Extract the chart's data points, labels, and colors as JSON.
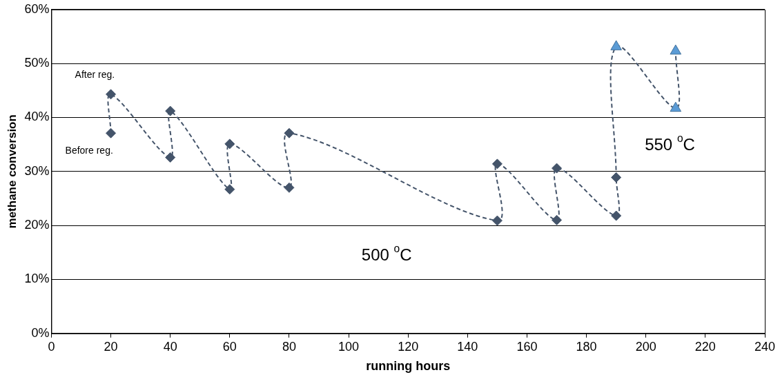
{
  "chart_data": {
    "type": "scatter",
    "xlabel": "running hours",
    "ylabel": "methane conversion",
    "xlim": [
      0,
      240
    ],
    "xticks": [
      0,
      20,
      40,
      60,
      80,
      100,
      120,
      140,
      160,
      180,
      200,
      220,
      240
    ],
    "ylim": [
      0,
      60
    ],
    "yticks": [
      {
        "value": 0,
        "label": "0%"
      },
      {
        "value": 10,
        "label": "10%"
      },
      {
        "value": 20,
        "label": "20%"
      },
      {
        "value": 30,
        "label": "30%"
      },
      {
        "value": 40,
        "label": "40%"
      },
      {
        "value": 50,
        "label": "50%"
      },
      {
        "value": 60,
        "label": "60%"
      }
    ],
    "grid": "y",
    "legend": false,
    "series": [
      {
        "type": "line",
        "marker": "none",
        "line_style": "dashed",
        "color": "#44546a",
        "x": [
          20,
          20,
          40,
          40,
          60,
          60,
          80,
          80,
          150,
          150,
          170,
          170,
          190,
          190,
          190,
          210,
          210
        ],
        "values": [
          37.1,
          44.3,
          32.6,
          41.2,
          26.7,
          35.1,
          27.0,
          37.1,
          20.9,
          31.4,
          21.0,
          30.6,
          21.8,
          28.9,
          53.1,
          41.7,
          52.3
        ]
      },
      {
        "type": "scatter",
        "marker": "diamond",
        "color": "#44546a",
        "x": [
          20,
          20,
          40,
          40,
          60,
          60,
          80,
          80,
          150,
          150,
          170,
          170,
          190,
          190
        ],
        "values": [
          37.1,
          44.3,
          32.6,
          41.2,
          26.7,
          35.1,
          27.0,
          37.1,
          20.9,
          31.4,
          21.0,
          30.6,
          21.8,
          28.9
        ]
      },
      {
        "type": "scatter",
        "marker": "triangle",
        "color": "#5b9bd5",
        "x": [
          190,
          210,
          210
        ],
        "values": [
          53.1,
          41.7,
          52.3
        ]
      }
    ],
    "annotations": [
      {
        "text": "After reg.",
        "x": 20,
        "y": 44.3
      },
      {
        "text": "Before reg.",
        "x": 20,
        "y": 37.1
      },
      "500 $^{o}$C",
      "550 $^{o}$C"
    ]
  }
}
